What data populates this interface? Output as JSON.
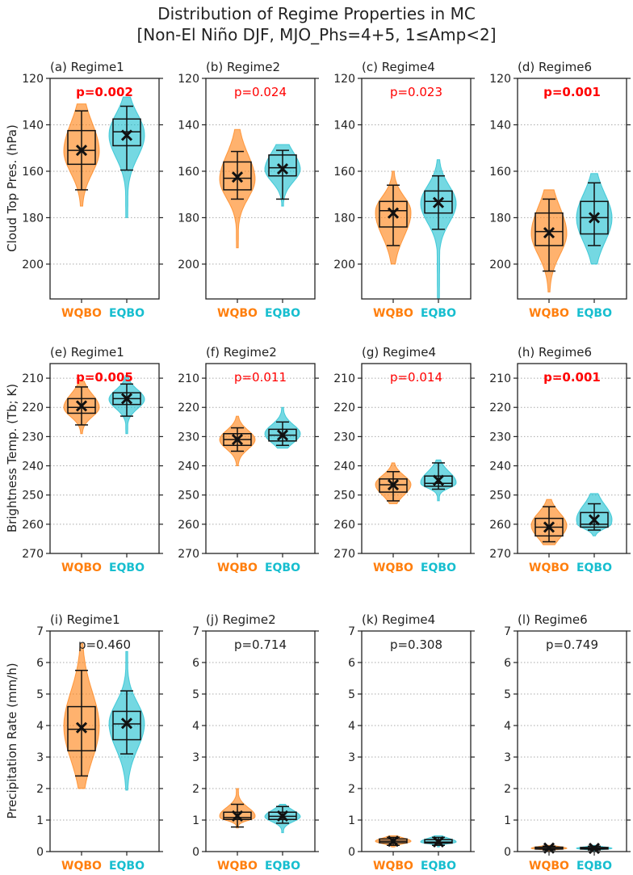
{
  "chart_data": {
    "type": "violin",
    "title_lines": [
      "Distribution of Regime Properties in MC",
      "[Non-El Niño DJF, MJO_Phs=4+5, 1≤Amp<2]"
    ],
    "categories": [
      "WQBO",
      "EQBO"
    ],
    "colors": {
      "WQBO": "#ff7f0e",
      "EQBO": "#17becf",
      "sig": "#ff0000",
      "nonsig": "#222222"
    },
    "rows": [
      {
        "ylabel": "Cloud Top Pres. (hPa)",
        "ylim": [
          120,
          215
        ],
        "inverted": true,
        "ticks": [
          "120",
          "140",
          "160",
          "180",
          "200"
        ]
      },
      {
        "ylabel": "Brightness Temp. (Tb; K)",
        "ylim": [
          205,
          270
        ],
        "inverted": true,
        "ticks": [
          "210",
          "220",
          "230",
          "240",
          "250",
          "260",
          "270"
        ]
      },
      {
        "ylabel": "Precipitation Rate (mm/h)",
        "ylim": [
          0,
          7
        ],
        "inverted": false,
        "ticks": [
          "0",
          "1",
          "2",
          "3",
          "4",
          "5",
          "6",
          "7"
        ]
      }
    ],
    "panels": [
      {
        "title": "(a) Regime1",
        "row": 0,
        "pvalue": "p=0.002",
        "significance": "strong",
        "groups": [
          {
            "min": 131,
            "max": 175,
            "wlo": 134,
            "whi": 168,
            "q1": 142.5,
            "median": 151,
            "q3": 157,
            "mean": 151
          },
          {
            "min": 128,
            "max": 180,
            "wlo": 132,
            "whi": 159.5,
            "q1": 137.5,
            "median": 143,
            "q3": 149,
            "mean": 144.5
          }
        ]
      },
      {
        "title": "(b) Regime2",
        "row": 0,
        "pvalue": "p=0.024",
        "significance": "weak",
        "groups": [
          {
            "min": 142,
            "max": 193,
            "wlo": 151.5,
            "whi": 172,
            "q1": 156,
            "median": 163,
            "q3": 168,
            "mean": 162.5
          },
          {
            "min": 148.5,
            "max": 175,
            "wlo": 151,
            "whi": 172,
            "q1": 153,
            "median": 158.5,
            "q3": 162,
            "mean": 159
          }
        ]
      },
      {
        "title": "(c) Regime4",
        "row": 0,
        "pvalue": "p=0.023",
        "significance": "weak",
        "groups": [
          {
            "min": 160,
            "max": 200,
            "wlo": 166,
            "whi": 192,
            "q1": 173,
            "median": 177,
            "q3": 184,
            "mean": 178
          },
          {
            "min": 155,
            "max": 215,
            "wlo": 162,
            "whi": 185,
            "q1": 168.5,
            "median": 173,
            "q3": 178,
            "mean": 173.5
          }
        ]
      },
      {
        "title": "(d) Regime6",
        "row": 0,
        "pvalue": "p=0.001",
        "significance": "strong",
        "groups": [
          {
            "min": 168,
            "max": 212,
            "wlo": 172,
            "whi": 203,
            "q1": 178,
            "median": 186,
            "q3": 192,
            "mean": 186.5
          },
          {
            "min": 161,
            "max": 200,
            "wlo": 165,
            "whi": 192,
            "q1": 173,
            "median": 180,
            "q3": 187,
            "mean": 180
          }
        ]
      },
      {
        "title": "(e) Regime1",
        "row": 1,
        "pvalue": "p=0.005",
        "significance": "strong",
        "groups": [
          {
            "min": 211,
            "max": 229,
            "wlo": 213,
            "whi": 226,
            "q1": 217,
            "median": 220,
            "q3": 222,
            "mean": 219.5
          },
          {
            "min": 209,
            "max": 229,
            "wlo": 212,
            "whi": 223,
            "q1": 215,
            "median": 217,
            "q3": 219,
            "mean": 217
          }
        ]
      },
      {
        "title": "(f) Regime2",
        "row": 1,
        "pvalue": "p=0.011",
        "significance": "weak",
        "groups": [
          {
            "min": 223,
            "max": 240,
            "wlo": 227,
            "whi": 235,
            "q1": 229,
            "median": 231,
            "q3": 233,
            "mean": 231
          },
          {
            "min": 220,
            "max": 234,
            "wlo": 225,
            "whi": 233,
            "q1": 227.5,
            "median": 229.5,
            "q3": 231.5,
            "mean": 229.5
          }
        ]
      },
      {
        "title": "(g) Regime4",
        "row": 1,
        "pvalue": "p=0.014",
        "significance": "weak",
        "groups": [
          {
            "min": 239,
            "max": 253,
            "wlo": 242,
            "whi": 252,
            "q1": 244.5,
            "median": 246.5,
            "q3": 249,
            "mean": 246.5
          },
          {
            "min": 238,
            "max": 252,
            "wlo": 239,
            "whi": 248,
            "q1": 243.5,
            "median": 246,
            "q3": 247,
            "mean": 245
          }
        ]
      },
      {
        "title": "(h) Regime6",
        "row": 1,
        "pvalue": "p=0.001",
        "significance": "strong",
        "groups": [
          {
            "min": 251.5,
            "max": 267,
            "wlo": 254,
            "whi": 266,
            "q1": 258,
            "median": 261,
            "q3": 264,
            "mean": 261
          },
          {
            "min": 249.5,
            "max": 264,
            "wlo": 253,
            "whi": 262,
            "q1": 256,
            "median": 260,
            "q3": 261,
            "mean": 258.5
          }
        ]
      },
      {
        "title": "(i) Regime1",
        "row": 2,
        "pvalue": "p=0.460",
        "significance": "none",
        "groups": [
          {
            "min": 2.0,
            "max": 6.6,
            "wlo": 2.4,
            "whi": 5.75,
            "q1": 3.2,
            "median": 3.88,
            "q3": 4.6,
            "mean": 3.93
          },
          {
            "min": 1.95,
            "max": 6.35,
            "wlo": 3.1,
            "whi": 5.1,
            "q1": 3.55,
            "median": 4.05,
            "q3": 4.45,
            "mean": 4.07
          }
        ]
      },
      {
        "title": "(j) Regime2",
        "row": 2,
        "pvalue": "p=0.714",
        "significance": "none",
        "groups": [
          {
            "min": 0.75,
            "max": 2.0,
            "wlo": 0.78,
            "whi": 1.5,
            "q1": 1.02,
            "median": 1.08,
            "q3": 1.25,
            "mean": 1.13
          },
          {
            "min": 0.6,
            "max": 1.5,
            "wlo": 0.9,
            "whi": 1.43,
            "q1": 1.02,
            "median": 1.12,
            "q3": 1.25,
            "mean": 1.13
          }
        ]
      },
      {
        "title": "(k) Regime4",
        "row": 2,
        "pvalue": "p=0.308",
        "significance": "none",
        "groups": [
          {
            "min": 0.15,
            "max": 0.5,
            "wlo": 0.2,
            "whi": 0.45,
            "q1": 0.28,
            "median": 0.33,
            "q3": 0.4,
            "mean": 0.33
          },
          {
            "min": 0.15,
            "max": 0.5,
            "wlo": 0.2,
            "whi": 0.45,
            "q1": 0.27,
            "median": 0.3,
            "q3": 0.38,
            "mean": 0.31
          }
        ]
      },
      {
        "title": "(l) Regime6",
        "row": 2,
        "pvalue": "p=0.749",
        "significance": "none",
        "groups": [
          {
            "min": 0.02,
            "max": 0.2,
            "wlo": 0.05,
            "whi": 0.17,
            "q1": 0.08,
            "median": 0.1,
            "q3": 0.14,
            "mean": 0.11
          },
          {
            "min": 0.02,
            "max": 0.2,
            "wlo": 0.05,
            "whi": 0.17,
            "q1": 0.08,
            "median": 0.1,
            "q3": 0.13,
            "mean": 0.1
          }
        ]
      }
    ]
  }
}
